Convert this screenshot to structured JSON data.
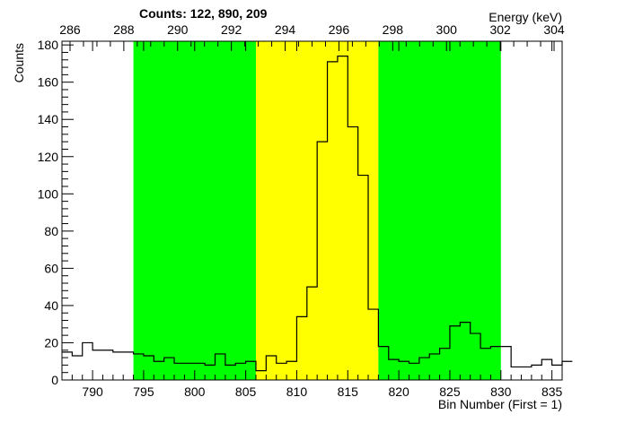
{
  "chart_data": {
    "type": "histogram",
    "title": "Counts:   122,   890,   209",
    "ylabel": "Counts",
    "xlabel": "Bin Number (First = 1)",
    "x2label": "Energy (keV)",
    "xlim": [
      787,
      836
    ],
    "ylim": [
      0,
      182
    ],
    "x_ticks": [
      790,
      795,
      800,
      805,
      810,
      815,
      820,
      825,
      830,
      835
    ],
    "y_ticks": [
      0,
      20,
      40,
      60,
      80,
      100,
      120,
      140,
      160,
      180
    ],
    "top_axis": {
      "unit_label": "Energy (keV)",
      "ticks": [
        286,
        288,
        290,
        292,
        294,
        296,
        298,
        300,
        302,
        304
      ],
      "range": [
        285.7,
        304.3
      ]
    },
    "regions": [
      {
        "name": "background-left",
        "x0": 794,
        "x1": 806,
        "color": "#00ff00"
      },
      {
        "name": "peak",
        "x0": 806,
        "x1": 818,
        "color": "#ffff00"
      },
      {
        "name": "background-right",
        "x0": 818,
        "x1": 830,
        "color": "#00ff00"
      }
    ],
    "bins": {
      "x0": 787,
      "width": 1,
      "values": [
        15,
        13,
        20,
        16,
        16,
        15,
        15,
        14,
        13,
        10,
        12,
        9,
        9,
        9,
        8,
        14,
        8,
        9,
        10,
        5,
        13,
        9,
        10,
        34,
        50,
        128,
        171,
        174,
        136,
        110,
        38,
        18,
        11,
        10,
        9,
        12,
        14,
        17,
        29,
        31,
        25,
        17,
        18,
        18,
        7,
        7,
        8,
        11,
        8,
        10
      ]
    },
    "line_color": "#000000"
  }
}
